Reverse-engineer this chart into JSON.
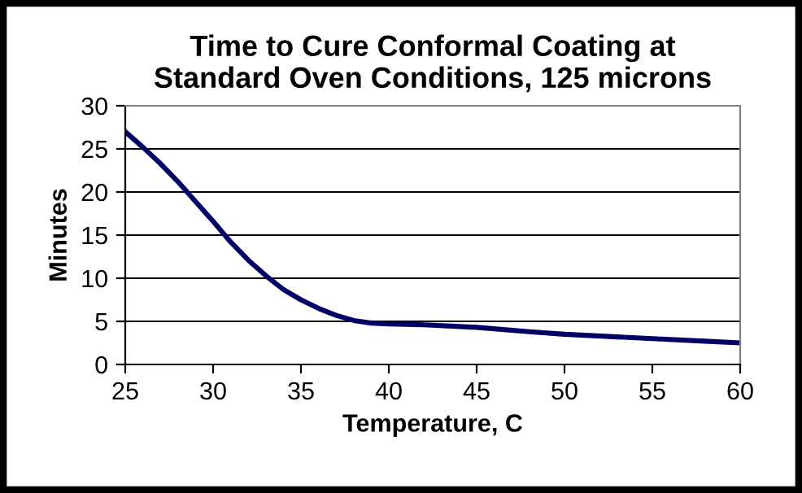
{
  "chart_data": {
    "type": "line",
    "title": "Time to Cure Conformal Coating at\nStandard Oven Conditions, 125 microns",
    "xlabel": "Temperature, C",
    "ylabel": "Minutes",
    "x": [
      25,
      26,
      27,
      28,
      29,
      30,
      31,
      32,
      33,
      34,
      35,
      36,
      37,
      38,
      39,
      40,
      42,
      45,
      48,
      50,
      53,
      55,
      58,
      60
    ],
    "series": [
      {
        "color": "#000066",
        "values": [
          27,
          25.2,
          23.3,
          21.2,
          18.9,
          16.6,
          14.2,
          12.1,
          10.3,
          8.7,
          7.5,
          6.5,
          5.7,
          5.1,
          4.8,
          4.7,
          4.6,
          4.3,
          3.8,
          3.5,
          3.2,
          3.0,
          2.7,
          2.5
        ]
      }
    ],
    "xlim": [
      25,
      60
    ],
    "ylim": [
      0,
      30
    ],
    "xticks": [
      25,
      30,
      35,
      40,
      45,
      50,
      55,
      60
    ],
    "yticks": [
      0,
      5,
      10,
      15,
      20,
      25,
      30
    ],
    "grid": "y",
    "marker": "none",
    "line_style": "solid",
    "legend": false
  }
}
